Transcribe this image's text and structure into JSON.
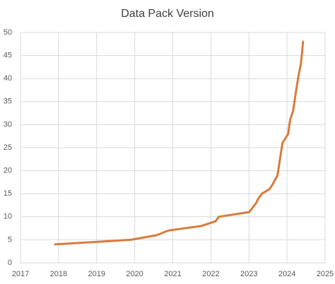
{
  "chart_data": {
    "type": "line",
    "title": "Data Pack Version",
    "x": [
      2017.91,
      2019.9,
      2020.58,
      2020.88,
      2021.75,
      2022.12,
      2022.21,
      2023.0,
      2023.1,
      2023.19,
      2023.25,
      2023.34,
      2023.54,
      2023.62,
      2023.75,
      2023.88,
      2024.03,
      2024.08,
      2024.16,
      2024.25,
      2024.31,
      2024.36,
      2024.4,
      2024.42
    ],
    "series": [
      {
        "color": "#d97b3a",
        "values": [
          4,
          5,
          6,
          7,
          8,
          9,
          10,
          11,
          12,
          13,
          14,
          15,
          16,
          17,
          19,
          26,
          28,
          31,
          33,
          38,
          41,
          43,
          46,
          48
        ]
      }
    ],
    "xlim": [
      2017,
      2025
    ],
    "xticks": [
      2017,
      2018,
      2019,
      2020,
      2021,
      2022,
      2023,
      2024,
      2025
    ],
    "ylim": [
      0,
      50
    ],
    "yticks": [
      0,
      5,
      10,
      15,
      20,
      25,
      30,
      35,
      40,
      45,
      50
    ],
    "grid": true
  }
}
